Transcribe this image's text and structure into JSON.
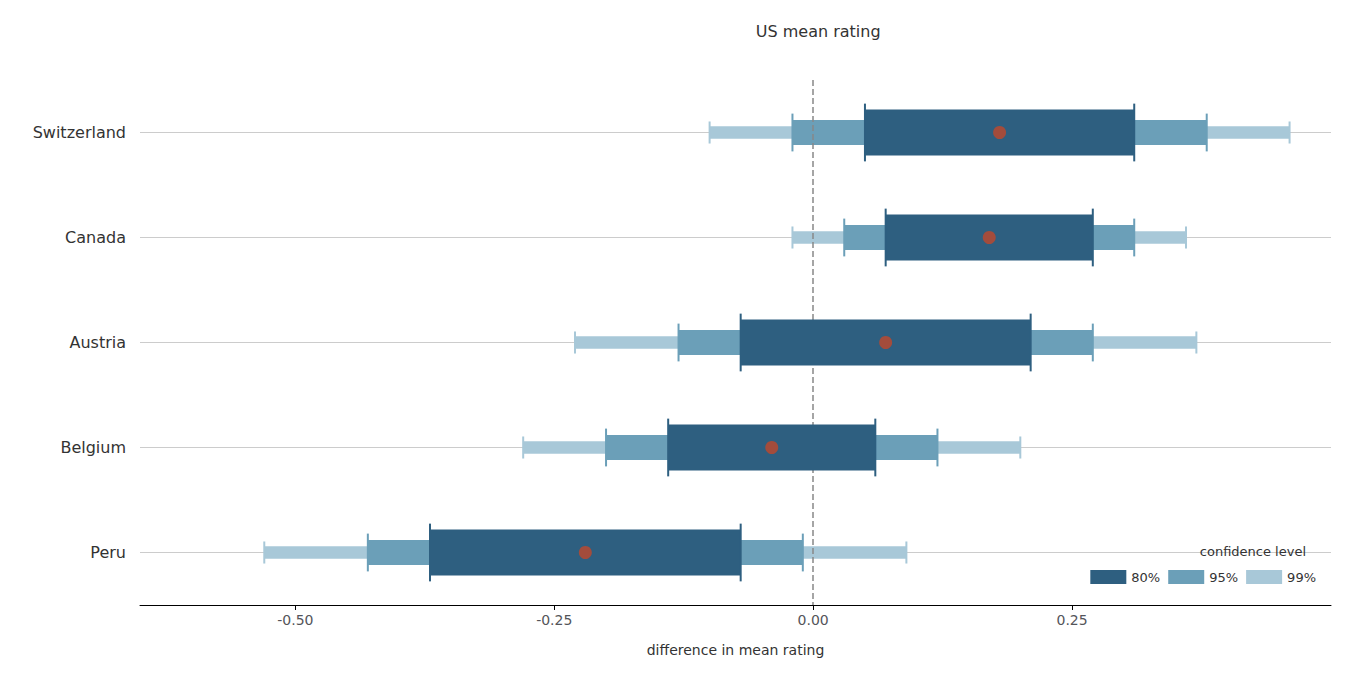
{
  "chart_data": {
    "type": "interval",
    "orientation": "horizontal",
    "title": "US mean rating",
    "xlabel": "difference in mean rating",
    "categories": [
      "Switzerland",
      "Canada",
      "Austria",
      "Belgium",
      "Peru"
    ],
    "series": [
      {
        "name": "80%",
        "color": "#2e5f80",
        "lo": [
          0.05,
          0.07,
          -0.07,
          -0.14,
          -0.37
        ],
        "hi": [
          0.31,
          0.27,
          0.21,
          0.06,
          -0.07
        ]
      },
      {
        "name": "95%",
        "color": "#6b9fb8",
        "lo": [
          -0.02,
          0.03,
          -0.13,
          -0.2,
          -0.43
        ],
        "hi": [
          0.38,
          0.31,
          0.27,
          0.12,
          -0.01
        ]
      },
      {
        "name": "99%",
        "color": "#a8c8d8",
        "lo": [
          -0.1,
          -0.02,
          -0.23,
          -0.28,
          -0.53
        ],
        "hi": [
          0.46,
          0.36,
          0.37,
          0.2,
          0.09
        ]
      }
    ],
    "mean": {
      "color": "#c0472a",
      "values": [
        0.18,
        0.17,
        0.07,
        -0.04,
        -0.22
      ]
    },
    "refline": {
      "value": 0,
      "color": "#888888"
    },
    "legend_title": "confidence level",
    "xlim": [
      -0.65,
      0.5
    ],
    "xticks": [
      {
        "value": -0.5,
        "label": "-0.50"
      },
      {
        "value": -0.25,
        "label": "-0.25"
      },
      {
        "value": 0,
        "label": "0.00"
      },
      {
        "value": 0.25,
        "label": "0.25"
      }
    ],
    "grid": true,
    "legend": "lower right"
  }
}
